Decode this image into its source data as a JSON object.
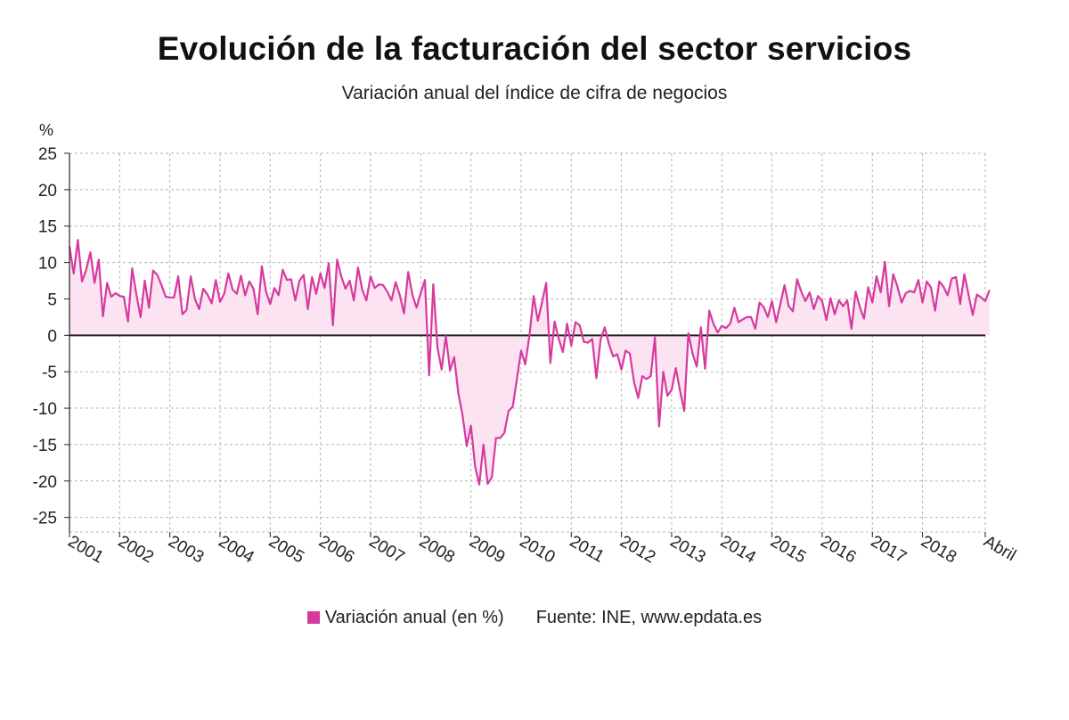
{
  "chart_data": {
    "type": "line",
    "title": "Evolución de la facturación del sector servicios",
    "subtitle": "Variación anual del índice de cifra de negocios",
    "ylabel": "%",
    "ylim": [
      -27,
      25
    ],
    "yticks": [
      25,
      20,
      15,
      10,
      5,
      0,
      -5,
      -10,
      -15,
      -20,
      -25
    ],
    "xlim": [
      2001.0,
      2019.25
    ],
    "xticks": [
      {
        "x": 2001,
        "label": "2001"
      },
      {
        "x": 2002,
        "label": "2002"
      },
      {
        "x": 2003,
        "label": "2003"
      },
      {
        "x": 2004,
        "label": "2004"
      },
      {
        "x": 2005,
        "label": "2005"
      },
      {
        "x": 2006,
        "label": "2006"
      },
      {
        "x": 2007,
        "label": "2007"
      },
      {
        "x": 2008,
        "label": "2008"
      },
      {
        "x": 2009,
        "label": "2009"
      },
      {
        "x": 2010,
        "label": "2010"
      },
      {
        "x": 2011,
        "label": "2011"
      },
      {
        "x": 2012,
        "label": "2012"
      },
      {
        "x": 2013,
        "label": "2013"
      },
      {
        "x": 2014,
        "label": "2014"
      },
      {
        "x": 2015,
        "label": "2015"
      },
      {
        "x": 2016,
        "label": "2016"
      },
      {
        "x": 2017,
        "label": "2017"
      },
      {
        "x": 2018,
        "label": "2018"
      },
      {
        "x": 2019.25,
        "label": "Abril"
      }
    ],
    "grid": true,
    "legend_position": "bottom",
    "colors": {
      "line": "#d63a9e",
      "fill": "#fbe3f1",
      "zero_line": "#222222",
      "grid": "#b5b5b5"
    },
    "series": [
      {
        "name": "Variación anual (en %)",
        "start_year": 2001,
        "values": [
          12.2,
          8.5,
          13.1,
          7.4,
          9.0,
          11.4,
          7.2,
          10.4,
          2.6,
          7.2,
          5.3,
          5.8,
          5.4,
          5.3,
          1.9,
          9.2,
          5.6,
          2.5,
          7.5,
          3.8,
          8.9,
          8.3,
          6.9,
          5.3,
          5.2,
          5.2,
          8.1,
          2.9,
          3.5,
          8.1,
          5.0,
          3.6,
          6.4,
          5.6,
          4.4,
          7.6,
          4.6,
          5.7,
          8.5,
          6.3,
          5.7,
          8.2,
          5.5,
          7.4,
          6.4,
          2.9,
          9.5,
          6.0,
          4.3,
          6.5,
          5.5,
          9.0,
          7.6,
          7.7,
          4.8,
          7.5,
          8.3,
          3.6,
          8.0,
          5.7,
          8.5,
          6.5,
          9.9,
          1.4,
          10.4,
          8.1,
          6.4,
          7.5,
          4.8,
          9.3,
          6.3,
          4.8,
          8.1,
          6.5,
          7.0,
          6.9,
          6.0,
          4.8,
          7.3,
          5.5,
          3.0,
          8.7,
          5.6,
          3.8,
          5.8,
          7.6,
          -5.5,
          7.0,
          -1.7,
          -4.7,
          -0.1,
          -4.8,
          -3.0,
          -8.0,
          -11.0,
          -15.2,
          -12.4,
          -18.0,
          -20.5,
          -15.0,
          -20.4,
          -19.5,
          -14.1,
          -14.1,
          -13.4,
          -10.4,
          -9.8,
          -6.0,
          -2.1,
          -4.0,
          0.0,
          5.4,
          2.0,
          4.5,
          7.2,
          -3.8,
          1.9,
          -0.5,
          -2.3,
          1.6,
          -1.4,
          1.8,
          1.4,
          -0.9,
          -1.0,
          -0.5,
          -5.9,
          -0.6,
          1.1,
          -1.2,
          -2.9,
          -2.6,
          -4.7,
          -2.1,
          -2.5,
          -6.4,
          -8.6,
          -5.6,
          -6.0,
          -5.6,
          -0.3,
          -12.5,
          -5.0,
          -8.3,
          -7.5,
          -4.5,
          -7.6,
          -10.4,
          0.3,
          -2.5,
          -4.3,
          1.1,
          -4.6,
          3.4,
          1.6,
          0.4,
          1.3,
          1.0,
          1.6,
          3.8,
          1.8,
          2.2,
          2.5,
          2.5,
          0.9,
          4.5,
          3.9,
          2.5,
          4.7,
          1.8,
          4.3,
          6.9,
          4.0,
          3.3,
          7.7,
          6.0,
          4.7,
          5.9,
          3.6,
          5.4,
          4.7,
          2.1,
          5.1,
          2.9,
          4.8,
          4.0,
          4.8,
          0.9,
          6.0,
          3.9,
          2.3,
          6.6,
          4.5,
          8.1,
          5.9,
          10.1,
          4.0,
          8.4,
          6.7,
          4.5,
          5.8,
          6.1,
          5.9,
          7.6,
          4.5,
          7.4,
          6.6,
          3.4,
          7.4,
          6.7,
          5.5,
          7.8,
          8.0,
          4.3,
          8.4,
          5.6,
          2.8,
          5.6,
          5.2,
          4.7,
          6.2
        ]
      }
    ]
  },
  "legend": {
    "series_label": "Variación anual (en %)",
    "source": "Fuente: INE, www.epdata.es"
  }
}
